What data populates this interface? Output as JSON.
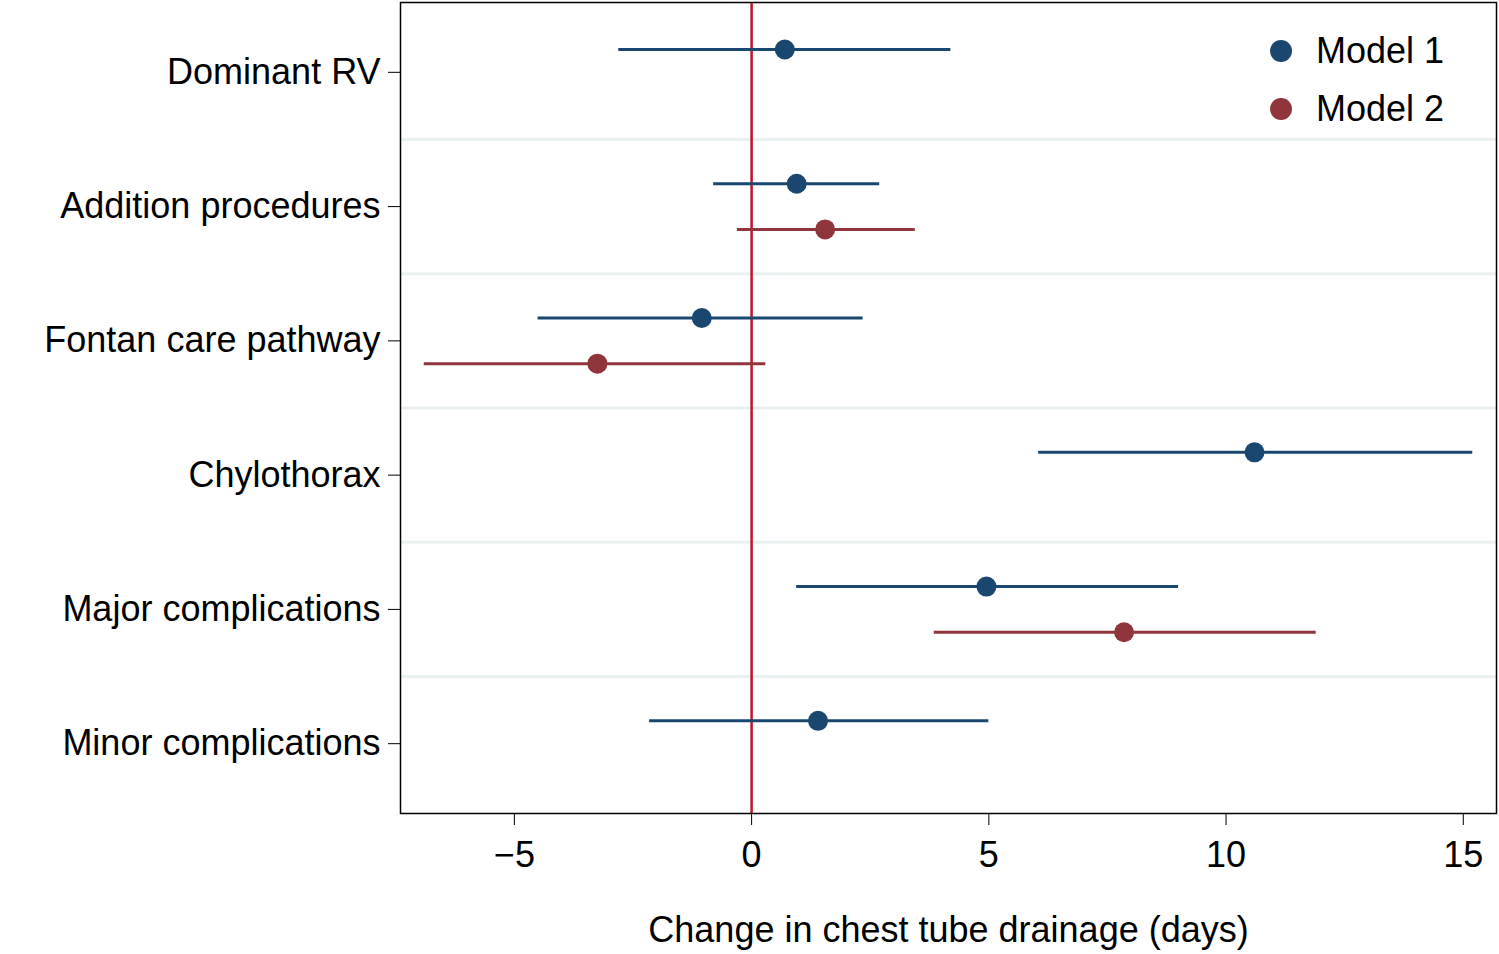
{
  "chart_data": {
    "type": "forest",
    "x_label": "Change in chest tube drainage (days)",
    "categories": [
      "Dominant RV",
      "Addition procedures",
      "Fontan care pathway",
      "Chylothorax",
      "Major complications",
      "Minor complications"
    ],
    "series": [
      {
        "name": "Model 1",
        "color": "#1a476f",
        "values": [
          0.7,
          0.95,
          -1.05,
          10.6,
          4.95,
          1.4
        ],
        "ci_low": [
          -2.8,
          -0.8,
          -4.5,
          6.05,
          0.95,
          -2.15
        ],
        "ci_high": [
          4.2,
          2.7,
          2.35,
          15.2,
          9.0,
          5.0
        ]
      },
      {
        "name": "Model 2",
        "color": "#90353b",
        "values": [
          null,
          1.55,
          -3.25,
          null,
          7.85,
          null
        ],
        "ci_low": [
          null,
          -0.3,
          -6.9,
          null,
          3.85,
          null
        ],
        "ci_high": [
          null,
          3.45,
          0.3,
          null,
          11.9,
          null
        ]
      }
    ],
    "reference_line": 0,
    "xlim": [
      -7.4,
      15.7
    ],
    "xticks": [
      -5,
      0,
      5,
      10,
      15
    ],
    "legend": "top-right"
  }
}
